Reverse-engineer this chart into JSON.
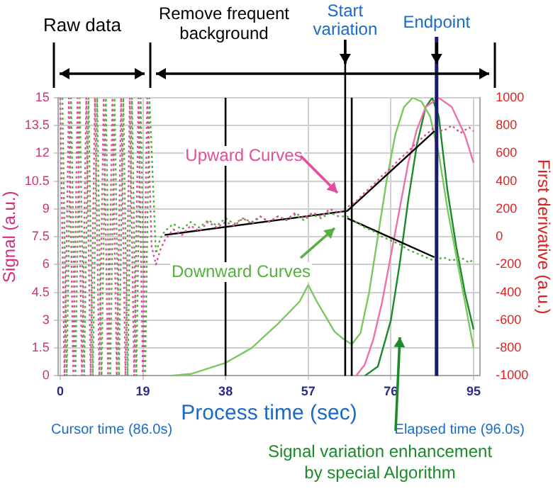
{
  "chart_data": {
    "type": "line",
    "xlabel": "Process time (sec)",
    "ylabel": "Signal (a.u.)",
    "y2label": "First derivative (a.u.)",
    "xlim": [
      -0.5,
      96.5
    ],
    "xticks": [
      0,
      19,
      38,
      57,
      76,
      95
    ],
    "ylim": [
      0,
      15
    ],
    "yticks": [
      0,
      1.5,
      3,
      4.5,
      6,
      7.5,
      9,
      10.5,
      12,
      13.5,
      15
    ],
    "y2lim": [
      -1000,
      1000
    ],
    "y2ticks": [
      -1000,
      -800,
      -600,
      -400,
      -200,
      0,
      200,
      400,
      600,
      800,
      1000
    ],
    "grid": true,
    "marker": "none",
    "series": [
      {
        "name": "Upward Curves",
        "color": "#e0509a",
        "line_style": "dotted",
        "x": [
          0,
          1,
          2,
          3,
          4,
          5,
          6,
          7,
          8,
          9,
          10,
          11,
          12,
          13,
          14,
          15,
          16,
          17,
          18,
          19,
          20,
          21,
          22,
          23,
          24,
          26,
          28,
          30,
          32,
          34,
          36,
          38,
          40,
          42,
          44,
          46,
          48,
          50,
          52,
          54,
          56,
          58,
          60,
          62,
          64,
          66,
          68,
          70,
          72,
          74,
          76,
          78,
          80,
          82,
          84,
          86,
          88,
          90,
          92,
          94,
          95
        ],
        "values": [
          15,
          0,
          15,
          0,
          15,
          0,
          15,
          0,
          15,
          0,
          15,
          0,
          15,
          0,
          15,
          0,
          15,
          0,
          15,
          0,
          15,
          7,
          6,
          6.8,
          7.3,
          7.9,
          7.6,
          8.1,
          7.8,
          8.3,
          8,
          8.3,
          8.1,
          8.5,
          8.2,
          8.6,
          8.3,
          8.6,
          8.4,
          8.8,
          8.5,
          8.8,
          8.6,
          9,
          8.8,
          9.1,
          9.4,
          9.9,
          10.3,
          10.8,
          11.2,
          11.7,
          12.1,
          12.6,
          13,
          13.4,
          13.2,
          13.5,
          13.1,
          13.4,
          13.2
        ]
      },
      {
        "name": "Downward Curves",
        "color": "#55b040",
        "line_style": "dotted",
        "x": [
          0.5,
          1.5,
          2.5,
          3.5,
          4.5,
          5.5,
          6.5,
          7.5,
          8.5,
          9.5,
          10.5,
          11.5,
          12.5,
          13.5,
          14.5,
          15.5,
          16.5,
          17.5,
          18.5,
          19.5,
          20.5,
          22,
          23,
          24,
          26,
          28,
          30,
          32,
          34,
          36,
          38,
          40,
          42,
          44,
          46,
          48,
          50,
          52,
          54,
          56,
          58,
          60,
          62,
          64,
          66,
          68,
          70,
          72,
          74,
          76,
          78,
          80,
          82,
          84,
          86,
          88,
          90,
          92,
          94,
          95
        ],
        "values": [
          15,
          0,
          15,
          0,
          15,
          0,
          15,
          0,
          15,
          0,
          15,
          0,
          15,
          0,
          15,
          0,
          15,
          0,
          15,
          0,
          15,
          6.6,
          7.4,
          7.8,
          8.2,
          7.9,
          8.3,
          8,
          8.4,
          8.1,
          8.5,
          8.2,
          8.5,
          8.3,
          8.6,
          8.3,
          8.6,
          8.4,
          8.7,
          8.4,
          8.7,
          8.5,
          8.8,
          8.6,
          8.6,
          8.3,
          8,
          7.8,
          7.5,
          7.3,
          7.1,
          6.8,
          6.6,
          6.4,
          6.2,
          6.4,
          6.2,
          6.4,
          6.1,
          6.3
        ]
      },
      {
        "color": "#000000",
        "x": [
          24,
          66,
          86
        ],
        "values": [
          7.6,
          8.9,
          13.2
        ]
      },
      {
        "color": "#000000",
        "x": [
          66,
          86
        ],
        "values": [
          8.5,
          6.4
        ]
      },
      {
        "color": "#7cc860",
        "x": [
          25,
          30,
          38,
          44,
          50,
          55,
          57,
          59,
          61,
          63,
          65,
          67,
          69,
          71,
          73,
          75,
          77,
          79,
          81,
          83,
          85,
          87,
          89,
          91,
          93,
          95
        ],
        "values": [
          0,
          0.1,
          0.7,
          1.5,
          2.8,
          4,
          4.9,
          4,
          3.2,
          2.4,
          2,
          1.7,
          2.3,
          4.5,
          7.5,
          10.5,
          13,
          14.5,
          15,
          14.8,
          14,
          12,
          9,
          6.5,
          4,
          1.5
        ]
      },
      {
        "color": "#ee70aa",
        "x": [
          68,
          70,
          72,
          74,
          76,
          78,
          80,
          82,
          84,
          87,
          90,
          93,
          95
        ],
        "values": [
          0,
          0.6,
          2,
          4,
          6.5,
          9,
          11.5,
          13.3,
          14.5,
          15,
          14.5,
          13,
          11.5
        ]
      },
      {
        "name": "Signal variation enhancement by special Algorithm",
        "color": "#1a8a2a",
        "x": [
          70,
          73,
          76,
          78,
          80,
          82,
          84,
          85.5,
          87,
          89,
          91,
          93,
          95
        ],
        "values": [
          0,
          0.5,
          3,
          6,
          9.5,
          12.5,
          14.5,
          15,
          14,
          10,
          7,
          4.5,
          2.5
        ]
      }
    ],
    "ref_lines": [
      {
        "axis": "x",
        "value": 38,
        "color": "#000000"
      },
      {
        "axis": "x",
        "value": 65.5,
        "color": "#000000",
        "label": "Start variation"
      },
      {
        "axis": "x",
        "value": 67,
        "color": "#000000"
      },
      {
        "axis": "x",
        "value": 86.5,
        "color": "#1a1a70",
        "label": "Endpoint"
      }
    ],
    "annotations": [
      "Raw data",
      "Remove frequent background",
      "Cursor time (86.0s)",
      "Elapsed time (96.0s)"
    ]
  }
}
